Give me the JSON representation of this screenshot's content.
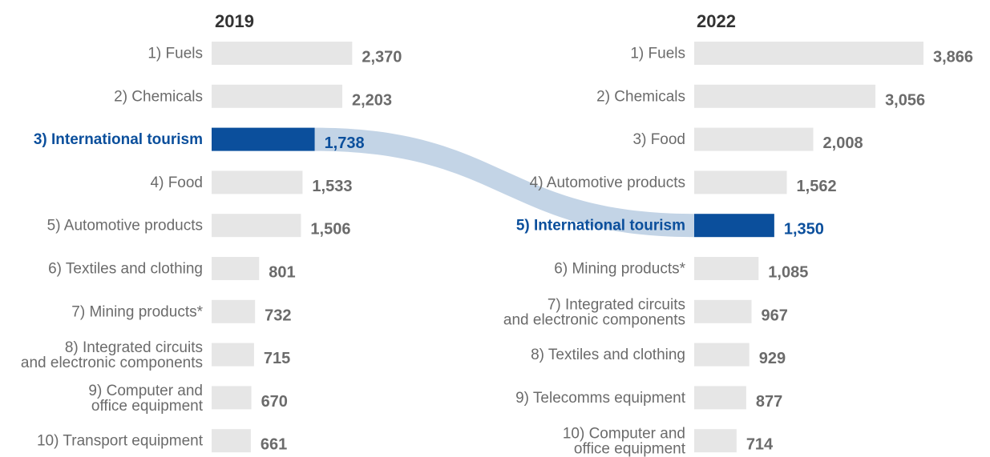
{
  "chart_data": {
    "type": "bar",
    "orientation": "horizontal",
    "panels": [
      {
        "year": "2019",
        "categories": [
          "1) Fuels",
          "2) Chemicals",
          "3) International tourism",
          "4) Food",
          "5) Automotive products",
          "6) Textiles and clothing",
          "7) Mining products*",
          "8) Integrated circuits and electronic components",
          "9) Computer and office equipment",
          "10) Transport equipment"
        ],
        "values": [
          2370,
          2203,
          1738,
          1533,
          1506,
          801,
          732,
          715,
          670,
          661
        ],
        "value_labels": [
          "2,370",
          "2,203",
          "1,738",
          "1,533",
          "1,506",
          "801",
          "732",
          "715",
          "670",
          "661"
        ],
        "highlight_index": 2
      },
      {
        "year": "2022",
        "categories": [
          "1) Fuels",
          "2) Chemicals",
          "3) Food",
          "4) Automotive products",
          "5) International tourism",
          "6) Mining products*",
          "7) Integrated circuits and electronic components",
          "8) Textiles and clothing",
          "9) Telecomms equipment",
          "10) Computer and office equipment"
        ],
        "values": [
          3866,
          3056,
          2008,
          1562,
          1350,
          1085,
          967,
          929,
          877,
          714
        ],
        "value_labels": [
          "3,866",
          "3,056",
          "2,008",
          "1,562",
          "1,350",
          "1,085",
          "967",
          "929",
          "877",
          "714"
        ],
        "highlight_index": 4
      }
    ],
    "highlight_category": "International tourism",
    "grid": false,
    "legend": "none"
  },
  "colors": {
    "bar": "#e6e6e6",
    "highlight": "#0b4f9c",
    "connector": "#c3d4e6",
    "text": "#6b6b6b",
    "year": "#333333"
  }
}
